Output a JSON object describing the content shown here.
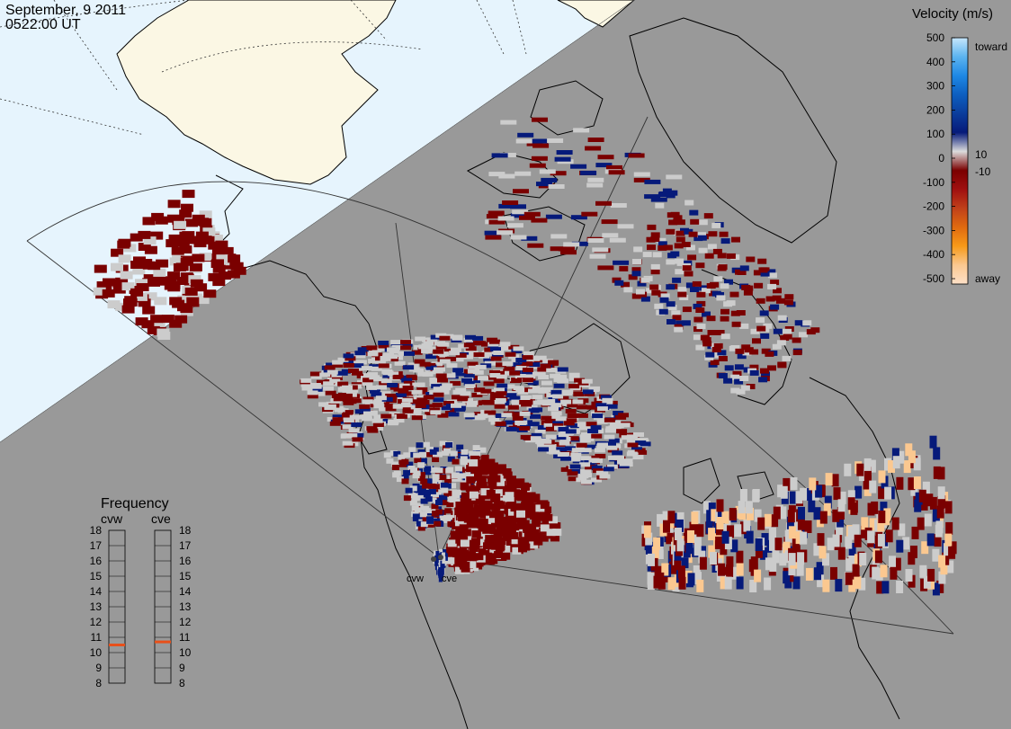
{
  "header": {
    "date": "September, 9 2011",
    "time": "0522:00 UT"
  },
  "colors": {
    "night_side": "#999999",
    "day_side": "#e6f4fd",
    "day_land": "#fbf7e4",
    "coastline": "#000000",
    "ground_scatter": "#cccccc"
  },
  "velocity_scale": {
    "title": "Velocity (m/s)",
    "ticks": [
      "500",
      "400",
      "300",
      "200",
      "100",
      "0",
      "-100",
      "-200",
      "-300",
      "-400",
      "-500"
    ],
    "toward_label": "toward",
    "away_label": "away",
    "near_zero_labels": [
      "10",
      "-10"
    ],
    "gradient": [
      "#c7e6fb",
      "#5cb4f0",
      "#1e88e5",
      "#0d5fc0",
      "#0b3d9c",
      "#061a7a",
      "#dcdcdc",
      "#7a0000",
      "#a01010",
      "#c0401a",
      "#e06a10",
      "#f79a18",
      "#fbc890",
      "#fde0c8"
    ]
  },
  "frequency": {
    "title": "Frequency",
    "radars": [
      {
        "name": "cvw",
        "value_mhz": 10.5
      },
      {
        "name": "cve",
        "value_mhz": 10.7
      }
    ],
    "ticks": [
      "18",
      "17",
      "16",
      "15",
      "14",
      "13",
      "12",
      "11",
      "10",
      "9",
      "8"
    ],
    "indicator_color": "#e8501a"
  },
  "map": {
    "radars": [
      {
        "name": "cvw"
      },
      {
        "name": "cve"
      }
    ]
  }
}
